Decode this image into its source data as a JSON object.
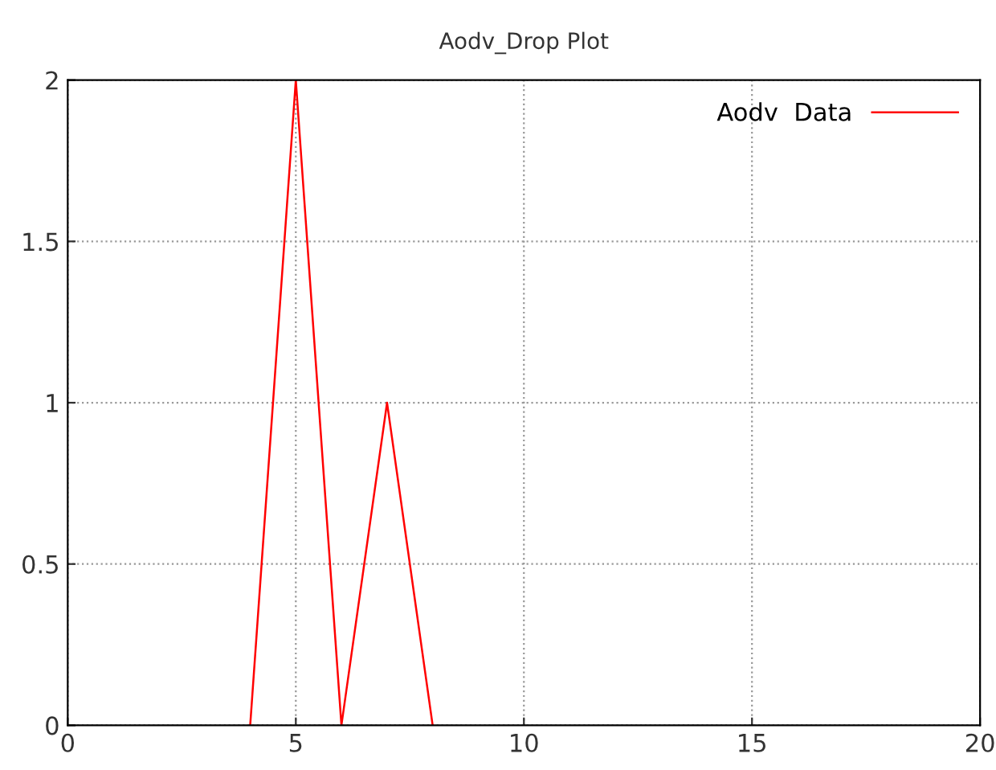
{
  "chart_data": {
    "type": "line",
    "title": "Aodv_Drop Plot",
    "x": [
      4,
      5,
      6,
      7,
      8
    ],
    "series": [
      {
        "name": "Aodv  Data",
        "color": "#ff0000",
        "values": [
          0,
          2,
          0,
          1,
          0
        ]
      }
    ],
    "xlim": [
      0,
      20
    ],
    "xticks": [
      0,
      5,
      10,
      15,
      20
    ],
    "ylim": [
      0,
      2
    ],
    "yticks": [
      0,
      0.5,
      1,
      1.5,
      2
    ],
    "grid": true,
    "legend": "top right",
    "marker": "none",
    "line_style": "solid"
  }
}
